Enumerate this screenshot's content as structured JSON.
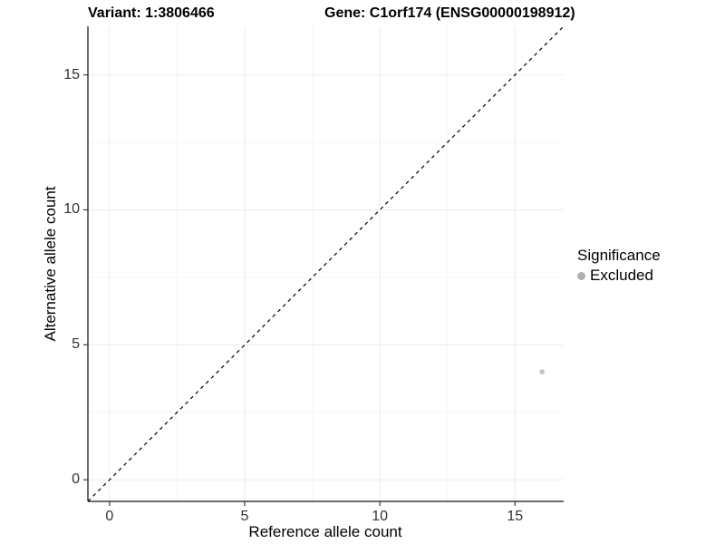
{
  "chart_data": {
    "type": "scatter",
    "title_left": "Variant: 1:3806466",
    "title_right": "Gene: C1orf174 (ENSG00000198912)",
    "xlabel": "Reference allele count",
    "ylabel": "Alternative allele count",
    "xlim": [
      -0.8,
      16.8
    ],
    "ylim": [
      -0.8,
      16.8
    ],
    "x_ticks": [
      0,
      5,
      10,
      15
    ],
    "y_ticks": [
      0,
      5,
      10,
      15
    ],
    "x_minor_ticks": [
      2.5,
      7.5,
      12.5
    ],
    "y_minor_ticks": [
      2.5,
      7.5,
      12.5
    ],
    "grid": "major+minor, light gray on white",
    "series": [
      {
        "name": "Excluded",
        "points": [
          {
            "x": 16,
            "y": 4
          }
        ],
        "color": "#c3c3c3",
        "point_radius": 2.8
      }
    ],
    "abline": {
      "slope": 1,
      "intercept": 0,
      "style": "dashed",
      "color": "#000000"
    },
    "legend": {
      "position": "right",
      "title": "Significance",
      "items": [
        {
          "label": "Excluded",
          "color": "#b0b0b0"
        }
      ]
    }
  },
  "colors": {
    "background": "#ffffff",
    "axis_line": "#3a3a3a",
    "grid_major": "#ebebeb",
    "grid_minor": "#f5f5f5",
    "tick_text": "#333333",
    "title_text": "#000000"
  }
}
